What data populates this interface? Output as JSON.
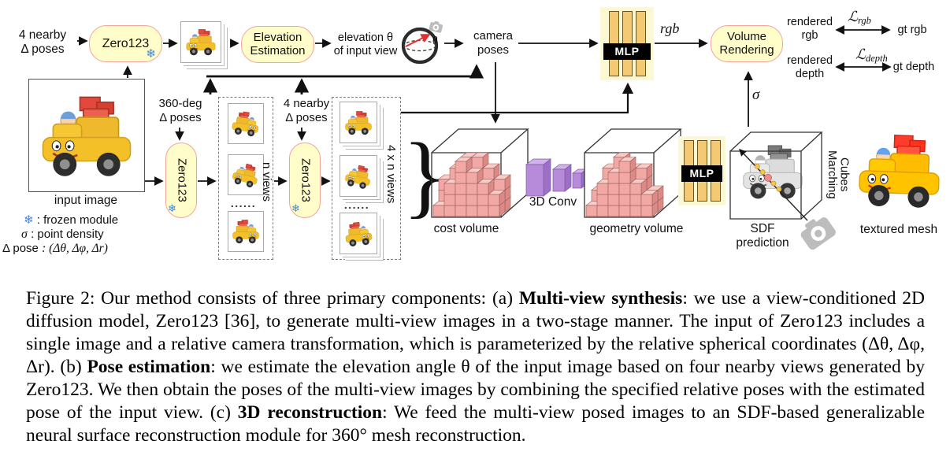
{
  "diagram": {
    "snowflake": "❄",
    "zero123": "Zero123",
    "mlp": "MLP",
    "top_row": {
      "nearby_poses_left": "4 nearby\nΔ poses",
      "elevation_estimation": "Elevation\nEstimation",
      "elevation_text": "elevation θ\nof input view",
      "theta": "θ",
      "camera_poses": "camera\nposes",
      "rgb": "rgb",
      "volume_rendering": "Volume\nRendering",
      "rendered_rgb": "rendered\nrgb",
      "loss_rgb": {
        "symbol": "ℒ",
        "sub": "rgb"
      },
      "gt_rgb": "gt rgb",
      "rendered_depth": "rendered\ndepth",
      "loss_depth": {
        "symbol": "ℒ",
        "sub": "depth"
      },
      "gt_depth": "gt depth",
      "sigma": "σ"
    },
    "mid_row": {
      "deg360_poses": "360-deg\nΔ poses",
      "nearby_poses_mid": "4 nearby\nΔ poses",
      "input_image_label": "input image",
      "n_views": "n views",
      "four_n_views": "4 x n views",
      "dots": "......",
      "brace": "}",
      "cost_volume_label": "cost volume",
      "conv3d_label": "3D Conv",
      "geometry_volume_label": "geometry volume",
      "sdf_label": "SDF prediction",
      "marching_cubes": "Marching\nCubes",
      "textured_mesh_label": "textured mesh"
    },
    "legend": {
      "frozen": {
        "icon": "❄",
        "def": ": frozen module"
      },
      "density": {
        "term": "σ",
        "def": ": point density"
      },
      "pose": {
        "term": "Δ pose",
        "def": ": (Δθ, Δφ, Δr)"
      }
    }
  },
  "caption": {
    "segments": [
      {
        "text": "Figure 2: Our method consists of three primary components: (a) ",
        "bold": false
      },
      {
        "text": "Multi-view synthesis",
        "bold": true
      },
      {
        "text": ": we use a view-conditioned 2D diffusion model, Zero123 [36], to generate multi-view images in a two-stage manner. The input of Zero123 includes a single image and a relative camera transformation, which is parameterized by the relative spherical coordinates (Δθ, Δφ, Δr). (b) ",
        "bold": false
      },
      {
        "text": "Pose estimation",
        "bold": true
      },
      {
        "text": ": we estimate the elevation angle θ of the input image based on four nearby views generated by Zero123.  We then obtain the poses of the multi-view images by combining the specified relative poses with the estimated pose of the input view. (c) ",
        "bold": false
      },
      {
        "text": "3D reconstruction",
        "bold": true
      },
      {
        "text": ": We feed the multi-view posed images to an SDF-based generalizable neural surface reconstruction module for 360° mesh reconstruction.",
        "bold": false
      }
    ]
  }
}
